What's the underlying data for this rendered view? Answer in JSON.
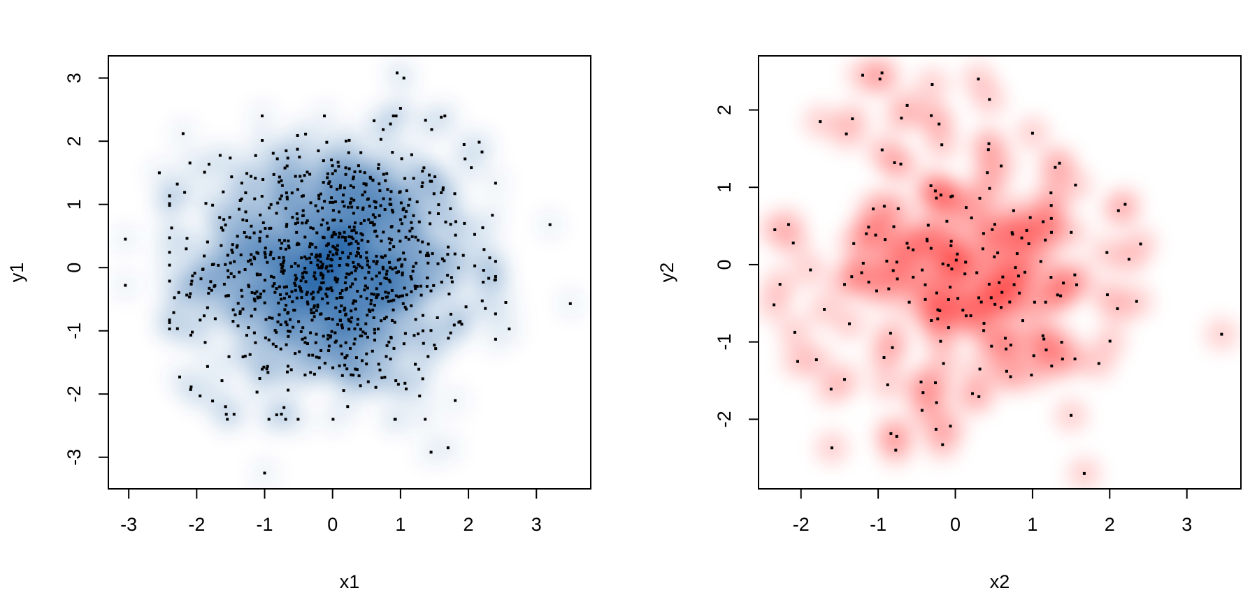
{
  "chart_data": [
    {
      "type": "scatter",
      "subtype": "smoothed-density-scatter",
      "xlabel": "x1",
      "ylabel": "y1",
      "xlim": [
        -3.3,
        3.8
      ],
      "ylim": [
        -3.5,
        3.35
      ],
      "xticks": [
        -3,
        -2,
        -1,
        0,
        1,
        2,
        3
      ],
      "yticks": [
        -3,
        -2,
        -1,
        0,
        1,
        2,
        3
      ],
      "xtick_labels": [
        "-3",
        "-2",
        "-1",
        "0",
        "1",
        "2",
        "3"
      ],
      "ytick_labels": [
        "-3",
        "-2",
        "-1",
        "0",
        "1",
        "2",
        "3"
      ],
      "density_color": "#08519c",
      "point_color": "#000000",
      "n_points": 1000,
      "distribution": "bivariate standard normal (point cloud centred near 0,0)",
      "outlier_points": [
        {
          "x": -3.05,
          "y": 0.45
        },
        {
          "x": -3.05,
          "y": -0.28
        },
        {
          "x": -1.0,
          "y": -3.25
        },
        {
          "x": 0.95,
          "y": 3.08
        },
        {
          "x": 1.05,
          "y": 3.0
        },
        {
          "x": 1.0,
          "y": 2.52
        },
        {
          "x": 3.2,
          "y": 0.68
        },
        {
          "x": 3.5,
          "y": -0.57
        },
        {
          "x": 1.45,
          "y": -2.92
        },
        {
          "x": 1.7,
          "y": -2.85
        },
        {
          "x": -2.2,
          "y": 2.12
        },
        {
          "x": -2.55,
          "y": 1.5
        },
        {
          "x": 2.2,
          "y": 1.83
        },
        {
          "x": 2.6,
          "y": -0.97
        },
        {
          "x": 2.55,
          "y": -0.55
        },
        {
          "x": -2.25,
          "y": -1.73
        },
        {
          "x": -1.95,
          "y": -2.03
        },
        {
          "x": 1.6,
          "y": 2.38
        },
        {
          "x": 1.95,
          "y": 1.72
        },
        {
          "x": -1.45,
          "y": -2.32
        }
      ]
    },
    {
      "type": "scatter",
      "subtype": "smoothed-density-scatter",
      "xlabel": "x2",
      "ylabel": "y2",
      "xlim": [
        -2.55,
        3.7
      ],
      "ylim": [
        -2.9,
        2.7
      ],
      "xticks": [
        -2,
        -1,
        0,
        1,
        2,
        3
      ],
      "yticks": [
        -2,
        -1,
        0,
        1,
        2
      ],
      "xtick_labels": [
        "-2",
        "-1",
        "0",
        "1",
        "2",
        "3"
      ],
      "ytick_labels": [
        "-2",
        "-1",
        "0",
        "1",
        "2"
      ],
      "density_color": "#ff0000",
      "point_color": "#000000",
      "n_points": 200,
      "distribution": "bivariate standard normal (point cloud centred near 0,0)",
      "outlier_points": [
        {
          "x": 3.45,
          "y": -0.9
        },
        {
          "x": -1.6,
          "y": -2.37
        },
        {
          "x": 1.67,
          "y": -2.7
        },
        {
          "x": -1.2,
          "y": 2.45
        },
        {
          "x": -0.95,
          "y": 2.48
        },
        {
          "x": -0.25,
          "y": -2.13
        },
        {
          "x": 2.25,
          "y": 0.07
        },
        {
          "x": 2.2,
          "y": 0.78
        },
        {
          "x": -2.35,
          "y": -0.52
        },
        {
          "x": -2.1,
          "y": 0.28
        },
        {
          "x": 2.1,
          "y": -0.57
        },
        {
          "x": -1.8,
          "y": -1.23
        },
        {
          "x": 1.5,
          "y": -1.95
        },
        {
          "x": 1.55,
          "y": -1.22
        },
        {
          "x": -1.75,
          "y": 1.85
        },
        {
          "x": 1.0,
          "y": 1.7
        },
        {
          "x": -0.3,
          "y": 2.33
        }
      ]
    }
  ]
}
